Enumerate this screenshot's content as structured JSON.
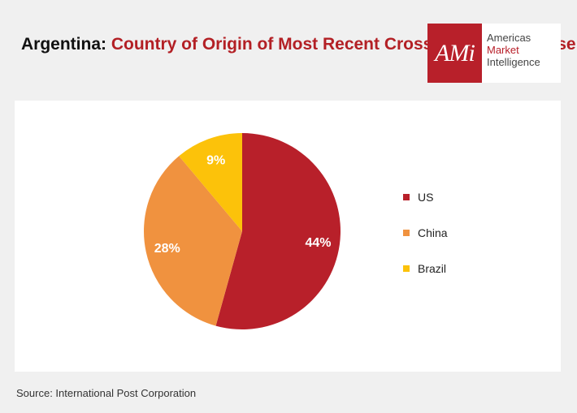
{
  "title": {
    "country": "Argentina:",
    "rest": "Country of Origin of Most Recent Cross-Border Purchase"
  },
  "logo": {
    "mark": "AMi",
    "line1": "Americas",
    "line2": "Market",
    "line3": "Intelligence"
  },
  "source": "Source: International Post Corporation",
  "chart_data": {
    "type": "pie",
    "title": "Argentina: Country of Origin of Most Recent Cross-Border Purchase",
    "categories": [
      "US",
      "China",
      "Brazil"
    ],
    "values": [
      44,
      28,
      9
    ],
    "value_labels": [
      "44%",
      "28%",
      "9%"
    ],
    "colors": [
      "#b8202a",
      "#f0923f",
      "#fcc20a"
    ],
    "legend_position": "right"
  }
}
